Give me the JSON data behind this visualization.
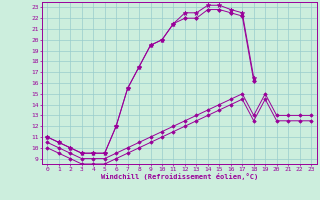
{
  "xlabel": "Windchill (Refroidissement éolien,°C)",
  "hours": [
    0,
    1,
    2,
    3,
    4,
    5,
    6,
    7,
    8,
    9,
    10,
    11,
    12,
    13,
    14,
    15,
    16,
    17,
    18,
    19,
    20,
    21,
    22,
    23
  ],
  "curve1": [
    11.0,
    10.5,
    10.0,
    9.5,
    9.5,
    9.5,
    12.0,
    15.5,
    17.5,
    19.5,
    20.0,
    21.5,
    22.5,
    22.5,
    23.2,
    23.2,
    22.8,
    22.5,
    16.5,
    null,
    null,
    null,
    null,
    null
  ],
  "curve2": [
    11.0,
    10.5,
    10.0,
    9.5,
    9.5,
    9.5,
    12.0,
    15.5,
    17.5,
    19.5,
    20.0,
    21.5,
    22.0,
    22.0,
    22.8,
    22.8,
    22.5,
    22.2,
    16.2,
    null,
    null,
    null,
    null,
    null
  ],
  "curve3": [
    10.5,
    10.0,
    9.5,
    9.0,
    9.0,
    9.0,
    9.5,
    10.0,
    10.5,
    11.0,
    11.5,
    12.0,
    12.5,
    13.0,
    13.5,
    14.0,
    14.5,
    15.0,
    13.0,
    15.0,
    13.0,
    13.0,
    13.0,
    13.0
  ],
  "curve4": [
    10.0,
    9.5,
    9.0,
    8.5,
    8.5,
    8.5,
    9.0,
    9.5,
    10.0,
    10.5,
    11.0,
    11.5,
    12.0,
    12.5,
    13.0,
    13.5,
    14.0,
    14.5,
    12.5,
    14.5,
    12.5,
    12.5,
    12.5,
    12.5
  ],
  "line_color": "#990099",
  "bg_color": "#cceedd",
  "grid_color": "#99cccc",
  "ylim": [
    8.5,
    23.5
  ],
  "xlim": [
    -0.5,
    23.5
  ],
  "yticks": [
    9,
    10,
    11,
    12,
    13,
    14,
    15,
    16,
    17,
    18,
    19,
    20,
    21,
    22,
    23
  ],
  "xticks": [
    0,
    1,
    2,
    3,
    4,
    5,
    6,
    7,
    8,
    9,
    10,
    11,
    12,
    13,
    14,
    15,
    16,
    17,
    18,
    19,
    20,
    21,
    22,
    23
  ]
}
